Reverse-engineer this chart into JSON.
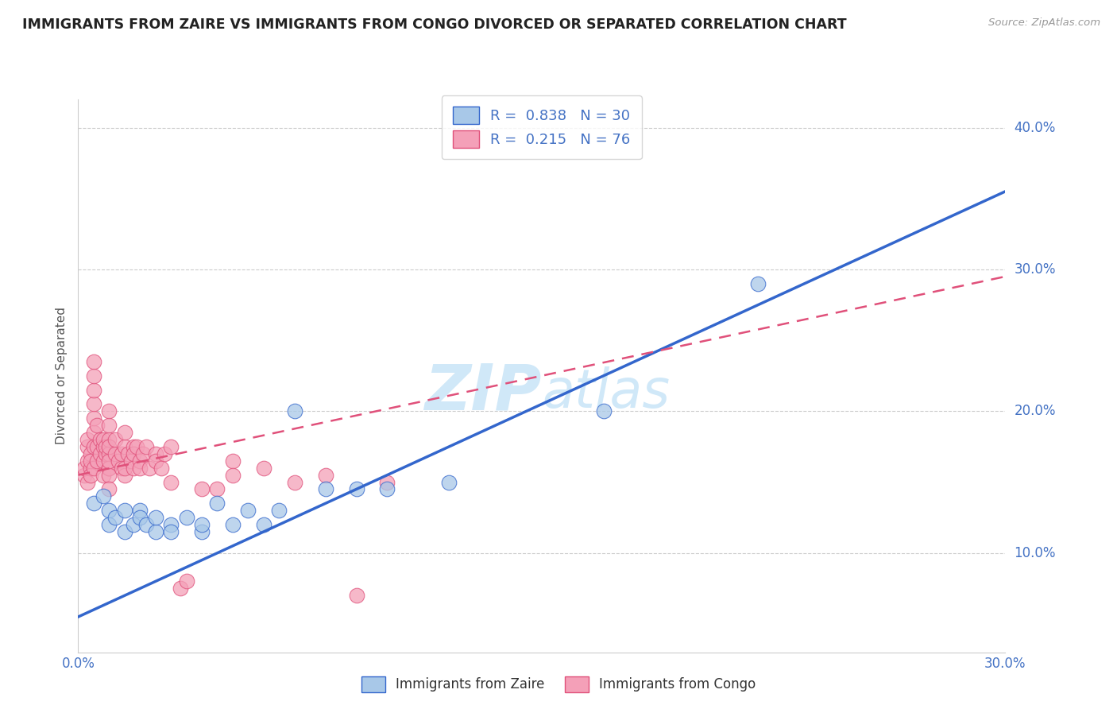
{
  "title": "IMMIGRANTS FROM ZAIRE VS IMMIGRANTS FROM CONGO DIVORCED OR SEPARATED CORRELATION CHART",
  "source_text": "Source: ZipAtlas.com",
  "ylabel": "Divorced or Separated",
  "legend_label_blue": "Immigrants from Zaire",
  "legend_label_pink": "Immigrants from Congo",
  "R_blue": 0.838,
  "N_blue": 30,
  "R_pink": 0.215,
  "N_pink": 76,
  "xlim": [
    0.0,
    0.3
  ],
  "ylim": [
    0.03,
    0.42
  ],
  "xticks": [
    0.0,
    0.05,
    0.1,
    0.15,
    0.2,
    0.25,
    0.3
  ],
  "yticks": [
    0.1,
    0.2,
    0.3,
    0.4
  ],
  "color_blue": "#a8c8e8",
  "color_pink": "#f4a0b8",
  "line_color_blue": "#3366cc",
  "line_color_pink": "#e0507a",
  "watermark_color": "#d0e8f8",
  "title_color": "#222222",
  "source_color": "#999999",
  "legend_text_color": "#4472c4",
  "blue_scatter_x": [
    0.005,
    0.008,
    0.01,
    0.01,
    0.012,
    0.015,
    0.015,
    0.018,
    0.02,
    0.02,
    0.022,
    0.025,
    0.025,
    0.03,
    0.03,
    0.035,
    0.04,
    0.04,
    0.045,
    0.05,
    0.055,
    0.06,
    0.065,
    0.07,
    0.08,
    0.09,
    0.1,
    0.12,
    0.17,
    0.22
  ],
  "blue_scatter_y": [
    0.135,
    0.14,
    0.13,
    0.12,
    0.125,
    0.115,
    0.13,
    0.12,
    0.13,
    0.125,
    0.12,
    0.115,
    0.125,
    0.12,
    0.115,
    0.125,
    0.115,
    0.12,
    0.135,
    0.12,
    0.13,
    0.12,
    0.13,
    0.2,
    0.145,
    0.145,
    0.145,
    0.15,
    0.2,
    0.29
  ],
  "pink_scatter_x": [
    0.002,
    0.002,
    0.003,
    0.003,
    0.003,
    0.003,
    0.004,
    0.004,
    0.004,
    0.004,
    0.005,
    0.005,
    0.005,
    0.005,
    0.005,
    0.005,
    0.005,
    0.005,
    0.006,
    0.006,
    0.006,
    0.007,
    0.007,
    0.008,
    0.008,
    0.008,
    0.008,
    0.009,
    0.009,
    0.01,
    0.01,
    0.01,
    0.01,
    0.01,
    0.01,
    0.01,
    0.01,
    0.01,
    0.01,
    0.012,
    0.012,
    0.013,
    0.014,
    0.014,
    0.015,
    0.015,
    0.015,
    0.015,
    0.016,
    0.017,
    0.018,
    0.018,
    0.018,
    0.019,
    0.02,
    0.02,
    0.021,
    0.022,
    0.023,
    0.025,
    0.025,
    0.027,
    0.028,
    0.03,
    0.03,
    0.033,
    0.035,
    0.04,
    0.045,
    0.05,
    0.05,
    0.06,
    0.07,
    0.08,
    0.09,
    0.1
  ],
  "pink_scatter_y": [
    0.155,
    0.16,
    0.175,
    0.18,
    0.165,
    0.15,
    0.17,
    0.16,
    0.155,
    0.165,
    0.175,
    0.185,
    0.195,
    0.205,
    0.215,
    0.225,
    0.235,
    0.16,
    0.165,
    0.175,
    0.19,
    0.17,
    0.18,
    0.175,
    0.18,
    0.165,
    0.155,
    0.17,
    0.175,
    0.16,
    0.17,
    0.18,
    0.19,
    0.2,
    0.16,
    0.155,
    0.165,
    0.175,
    0.145,
    0.17,
    0.18,
    0.165,
    0.17,
    0.16,
    0.175,
    0.185,
    0.155,
    0.16,
    0.17,
    0.165,
    0.175,
    0.17,
    0.16,
    0.175,
    0.165,
    0.16,
    0.17,
    0.175,
    0.16,
    0.17,
    0.165,
    0.16,
    0.17,
    0.175,
    0.15,
    0.075,
    0.08,
    0.145,
    0.145,
    0.165,
    0.155,
    0.16,
    0.15,
    0.155,
    0.07,
    0.15
  ]
}
